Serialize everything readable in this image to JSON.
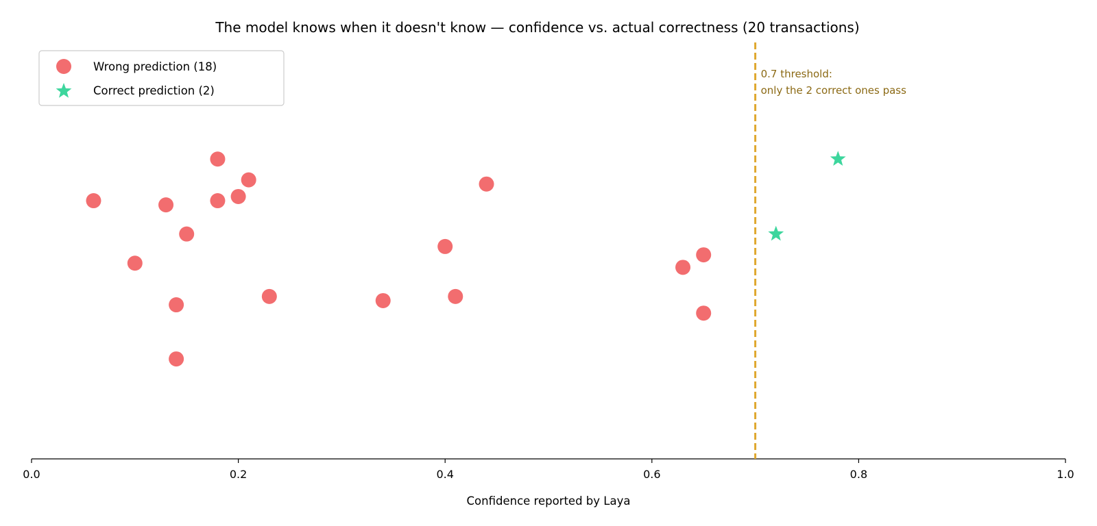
{
  "chart_data": {
    "type": "scatter",
    "title": "The model knows when it doesn't know — confidence vs. actual correctness (20 transactions)",
    "xlabel": "Confidence reported by Laya",
    "ylabel": "",
    "xlim": [
      0.0,
      1.0
    ],
    "ylim": [
      0.0,
      1.0
    ],
    "x_ticks": [
      "0.0",
      "0.2",
      "0.4",
      "0.6",
      "0.8",
      "1.0"
    ],
    "grid": false,
    "legend_position": "top-left",
    "series": [
      {
        "name": "Wrong prediction (18)",
        "marker": "circle",
        "color": "#f26d6f",
        "points": [
          {
            "x": 0.06,
            "y": 0.62
          },
          {
            "x": 0.1,
            "y": 0.47
          },
          {
            "x": 0.13,
            "y": 0.61
          },
          {
            "x": 0.14,
            "y": 0.37
          },
          {
            "x": 0.14,
            "y": 0.24
          },
          {
            "x": 0.15,
            "y": 0.54
          },
          {
            "x": 0.18,
            "y": 0.72
          },
          {
            "x": 0.18,
            "y": 0.62
          },
          {
            "x": 0.2,
            "y": 0.63
          },
          {
            "x": 0.21,
            "y": 0.67
          },
          {
            "x": 0.23,
            "y": 0.39
          },
          {
            "x": 0.34,
            "y": 0.38
          },
          {
            "x": 0.4,
            "y": 0.51
          },
          {
            "x": 0.41,
            "y": 0.39
          },
          {
            "x": 0.44,
            "y": 0.66
          },
          {
            "x": 0.63,
            "y": 0.46
          },
          {
            "x": 0.65,
            "y": 0.49
          },
          {
            "x": 0.65,
            "y": 0.35
          }
        ]
      },
      {
        "name": "Correct prediction (2)",
        "marker": "star",
        "color": "#3dd69d",
        "points": [
          {
            "x": 0.72,
            "y": 0.54
          },
          {
            "x": 0.78,
            "y": 0.72
          }
        ]
      }
    ],
    "threshold": {
      "x": 0.7,
      "color": "#dfa72e",
      "label_line1": "0.7 threshold:",
      "label_line2": "only the 2 correct ones pass",
      "label_color": "#8b6914"
    }
  }
}
